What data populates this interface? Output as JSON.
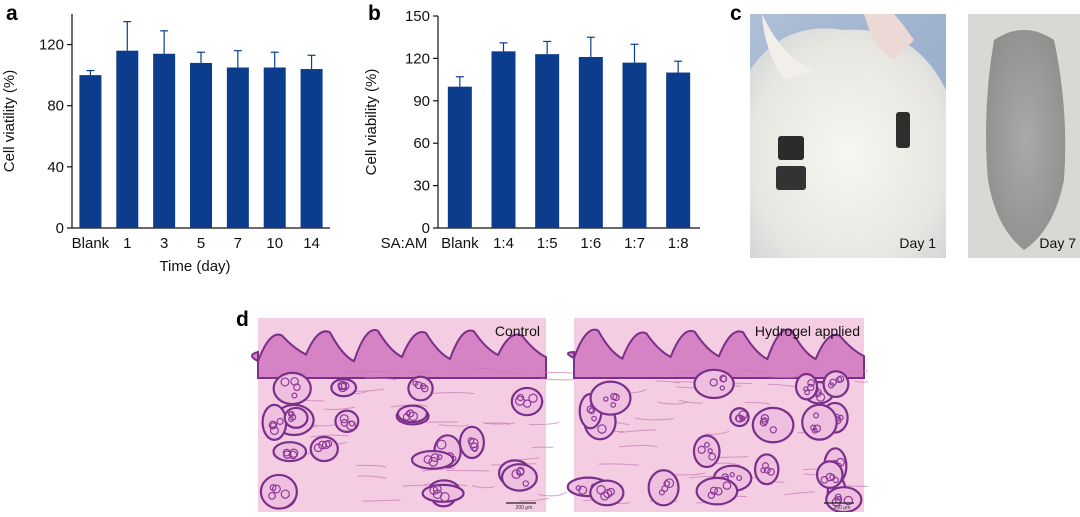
{
  "colors": {
    "bar": "#0b3d8c",
    "axis": "#111111",
    "photo_blue": "#9bb2cd",
    "fur": "#e9e8e3",
    "stain_bg": "#f4cde3",
    "stain_dark": "#7a2f8a",
    "stain_mid": "#d583c4"
  },
  "panels": {
    "a": {
      "letter": "a"
    },
    "b": {
      "letter": "b"
    },
    "c": {
      "letter": "c",
      "left_label": "Day 1",
      "right_label": "Day 7"
    },
    "d": {
      "letter": "d",
      "left_label": "Control",
      "right_label": "Hydrogel applied",
      "scale_text": "200 μm"
    }
  },
  "chart_data": [
    {
      "type": "bar",
      "categories": [
        "Blank",
        "1",
        "3",
        "5",
        "7",
        "10",
        "14"
      ],
      "values": [
        100,
        116,
        114,
        108,
        105,
        105,
        104
      ],
      "errors": [
        3,
        19,
        15,
        7,
        11,
        10,
        9
      ],
      "xlabel": "Time (day)",
      "ylabel": "Cell viatility (%)",
      "ylim": [
        0,
        140
      ],
      "yticks": [
        0,
        40,
        80,
        120
      ],
      "axis_prefix": "",
      "grid": false
    },
    {
      "type": "bar",
      "categories": [
        "Blank",
        "1:4",
        "1:5",
        "1:6",
        "1:7",
        "1:8"
      ],
      "values": [
        100,
        125,
        123,
        121,
        117,
        110
      ],
      "errors": [
        7,
        6,
        9,
        14,
        13,
        8
      ],
      "xlabel": "",
      "ylabel": "Cell viability (%)",
      "ylim": [
        0,
        150
      ],
      "yticks": [
        0,
        30,
        60,
        90,
        120,
        150
      ],
      "axis_prefix": "SA:AM",
      "grid": false
    }
  ]
}
